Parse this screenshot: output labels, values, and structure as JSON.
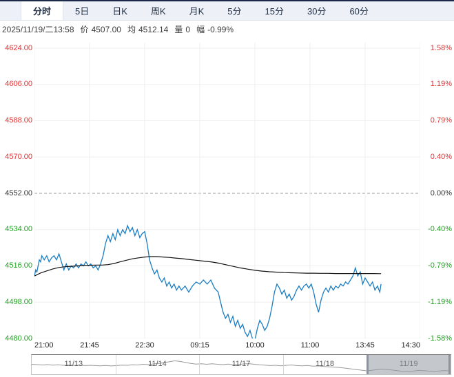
{
  "tabbar": {
    "tabs": [
      {
        "label": "分时",
        "selected": true
      },
      {
        "label": "5日",
        "selected": false
      },
      {
        "label": "日K",
        "selected": false
      },
      {
        "label": "周K",
        "selected": false
      },
      {
        "label": "月K",
        "selected": false
      },
      {
        "label": "5分",
        "selected": false
      },
      {
        "label": "15分",
        "selected": false
      },
      {
        "label": "30分",
        "selected": false
      },
      {
        "label": "60分",
        "selected": false
      }
    ]
  },
  "status": {
    "datetime": "2025/11/19/二13:58",
    "fields": [
      {
        "label": "价",
        "value": "4507.00"
      },
      {
        "label": "均",
        "value": "4512.14"
      },
      {
        "label": "量",
        "value": "0"
      },
      {
        "label": "幅",
        "value": "-0.99%"
      }
    ]
  },
  "colors": {
    "up_red": "#e03333",
    "down_green": "#1fa31f",
    "neutral": "#333333",
    "price_line": "#1a7dc2",
    "avg_line": "#111111",
    "grid": "#efefef",
    "mid_dash": "#999999",
    "sparkline": "#9a9a9a",
    "tick_text": "#222222"
  },
  "chart_data": {
    "type": "line",
    "title": "intraday time-sharing chart",
    "x_axis": {
      "domain_minutes": [
        0,
        315
      ],
      "ticks": [
        {
          "label": "21:00",
          "min": 0
        },
        {
          "label": "21:45",
          "min": 45
        },
        {
          "label": "22:30",
          "min": 90
        },
        {
          "label": "09:15",
          "min": 135
        },
        {
          "label": "10:00",
          "min": 180
        },
        {
          "label": "11:00",
          "min": 225
        },
        {
          "label": "13:45",
          "min": 270
        },
        {
          "label": "14:30",
          "min": 315
        }
      ]
    },
    "y_axis": {
      "domain": [
        4480,
        4624
      ],
      "prev_close": 4552,
      "levels": [
        {
          "price": "4624.00",
          "pct": "1.58%",
          "tone": "up"
        },
        {
          "price": "4606.00",
          "pct": "1.19%",
          "tone": "up"
        },
        {
          "price": "4588.00",
          "pct": "0.79%",
          "tone": "up"
        },
        {
          "price": "4570.00",
          "pct": "0.40%",
          "tone": "up"
        },
        {
          "price": "4552.00",
          "pct": "0.00%",
          "tone": "flat"
        },
        {
          "price": "4534.00",
          "pct": "-0.40%",
          "tone": "down"
        },
        {
          "price": "4516.00",
          "pct": "-0.79%",
          "tone": "down"
        },
        {
          "price": "4498.00",
          "pct": "-1.19%",
          "tone": "down"
        },
        {
          "price": "4480.00",
          "pct": "-1.58%",
          "tone": "down"
        }
      ]
    },
    "series": [
      {
        "name": "price",
        "color_key": "price_line",
        "width": 1.3,
        "points": [
          [
            0,
            4511
          ],
          [
            1,
            4514
          ],
          [
            2,
            4513
          ],
          [
            3,
            4516
          ],
          [
            4,
            4519
          ],
          [
            5,
            4518
          ],
          [
            6,
            4521
          ],
          [
            8,
            4519
          ],
          [
            10,
            4521
          ],
          [
            12,
            4518
          ],
          [
            14,
            4520
          ],
          [
            16,
            4521
          ],
          [
            18,
            4519
          ],
          [
            20,
            4522
          ],
          [
            22,
            4518
          ],
          [
            24,
            4514
          ],
          [
            26,
            4517
          ],
          [
            28,
            4514
          ],
          [
            30,
            4516
          ],
          [
            32,
            4515
          ],
          [
            34,
            4517
          ],
          [
            36,
            4515
          ],
          [
            38,
            4517
          ],
          [
            40,
            4516
          ],
          [
            42,
            4518
          ],
          [
            44,
            4516
          ],
          [
            46,
            4517
          ],
          [
            48,
            4515
          ],
          [
            50,
            4516
          ],
          [
            52,
            4514
          ],
          [
            54,
            4517
          ],
          [
            56,
            4521
          ],
          [
            58,
            4527
          ],
          [
            60,
            4531
          ],
          [
            62,
            4528
          ],
          [
            64,
            4532
          ],
          [
            66,
            4529
          ],
          [
            68,
            4534
          ],
          [
            70,
            4531
          ],
          [
            72,
            4534
          ],
          [
            74,
            4532
          ],
          [
            76,
            4536
          ],
          [
            78,
            4533
          ],
          [
            80,
            4535
          ],
          [
            82,
            4531
          ],
          [
            84,
            4534
          ],
          [
            86,
            4530
          ],
          [
            88,
            4532
          ],
          [
            90,
            4533
          ],
          [
            92,
            4527
          ],
          [
            94,
            4519
          ],
          [
            96,
            4515
          ],
          [
            98,
            4512
          ],
          [
            100,
            4514
          ],
          [
            102,
            4510
          ],
          [
            104,
            4508
          ],
          [
            106,
            4510
          ],
          [
            108,
            4506
          ],
          [
            110,
            4508
          ],
          [
            112,
            4505
          ],
          [
            114,
            4507
          ],
          [
            116,
            4504
          ],
          [
            118,
            4506
          ],
          [
            120,
            4504
          ],
          [
            123,
            4506
          ],
          [
            126,
            4503
          ],
          [
            129,
            4506
          ],
          [
            132,
            4508
          ],
          [
            135,
            4507
          ],
          [
            138,
            4509
          ],
          [
            141,
            4507
          ],
          [
            144,
            4509
          ],
          [
            147,
            4505
          ],
          [
            150,
            4503
          ],
          [
            152,
            4498
          ],
          [
            154,
            4493
          ],
          [
            156,
            4490
          ],
          [
            158,
            4492
          ],
          [
            160,
            4488
          ],
          [
            162,
            4491
          ],
          [
            164,
            4486
          ],
          [
            166,
            4489
          ],
          [
            168,
            4485
          ],
          [
            170,
            4487
          ],
          [
            172,
            4483
          ],
          [
            174,
            4481
          ],
          [
            176,
            4484
          ],
          [
            178,
            4480
          ],
          [
            180,
            4479
          ],
          [
            182,
            4485
          ],
          [
            184,
            4489
          ],
          [
            186,
            4487
          ],
          [
            188,
            4484
          ],
          [
            190,
            4486
          ],
          [
            192,
            4490
          ],
          [
            194,
            4496
          ],
          [
            196,
            4503
          ],
          [
            198,
            4507
          ],
          [
            200,
            4505
          ],
          [
            202,
            4502
          ],
          [
            204,
            4504
          ],
          [
            206,
            4500
          ],
          [
            208,
            4502
          ],
          [
            210,
            4499
          ],
          [
            212,
            4501
          ],
          [
            214,
            4504
          ],
          [
            216,
            4506
          ],
          [
            218,
            4504
          ],
          [
            220,
            4506
          ],
          [
            222,
            4507
          ],
          [
            224,
            4505
          ],
          [
            226,
            4507
          ],
          [
            228,
            4503
          ],
          [
            230,
            4497
          ],
          [
            232,
            4493
          ],
          [
            234,
            4499
          ],
          [
            236,
            4503
          ],
          [
            238,
            4505
          ],
          [
            240,
            4503
          ],
          [
            242,
            4506
          ],
          [
            244,
            4504
          ],
          [
            246,
            4506
          ],
          [
            248,
            4505
          ],
          [
            250,
            4507
          ],
          [
            252,
            4506
          ],
          [
            254,
            4508
          ],
          [
            256,
            4507
          ],
          [
            258,
            4509
          ],
          [
            260,
            4511
          ],
          [
            262,
            4515
          ],
          [
            264,
            4511
          ],
          [
            266,
            4513
          ],
          [
            268,
            4507
          ],
          [
            270,
            4510
          ],
          [
            272,
            4508
          ],
          [
            274,
            4506
          ],
          [
            276,
            4508
          ],
          [
            278,
            4504
          ],
          [
            280,
            4506
          ],
          [
            282,
            4503
          ],
          [
            283,
            4507
          ]
        ]
      },
      {
        "name": "average",
        "color_key": "avg_line",
        "width": 1.2,
        "points": [
          [
            0,
            4511
          ],
          [
            5,
            4512.5
          ],
          [
            10,
            4513.5
          ],
          [
            15,
            4514.5
          ],
          [
            20,
            4515.2
          ],
          [
            25,
            4515.6
          ],
          [
            30,
            4515.8
          ],
          [
            35,
            4516
          ],
          [
            40,
            4516.2
          ],
          [
            45,
            4516.3
          ],
          [
            50,
            4516.4
          ],
          [
            55,
            4516.4
          ],
          [
            60,
            4516.6
          ],
          [
            65,
            4517.2
          ],
          [
            70,
            4518
          ],
          [
            75,
            4518.8
          ],
          [
            80,
            4519.5
          ],
          [
            85,
            4520
          ],
          [
            90,
            4520.4
          ],
          [
            95,
            4520.6
          ],
          [
            100,
            4520.6
          ],
          [
            105,
            4520.4
          ],
          [
            110,
            4520.2
          ],
          [
            115,
            4519.9
          ],
          [
            120,
            4519.6
          ],
          [
            126,
            4519.2
          ],
          [
            132,
            4518.8
          ],
          [
            138,
            4518.4
          ],
          [
            144,
            4518
          ],
          [
            150,
            4517.4
          ],
          [
            156,
            4516.6
          ],
          [
            162,
            4515.8
          ],
          [
            168,
            4515
          ],
          [
            174,
            4514.4
          ],
          [
            180,
            4513.8
          ],
          [
            186,
            4513.4
          ],
          [
            192,
            4513.1
          ],
          [
            198,
            4512.9
          ],
          [
            204,
            4512.7
          ],
          [
            210,
            4512.6
          ],
          [
            216,
            4512.5
          ],
          [
            222,
            4512.4
          ],
          [
            228,
            4512.4
          ],
          [
            234,
            4512.3
          ],
          [
            240,
            4512.3
          ],
          [
            246,
            4512.2
          ],
          [
            252,
            4512.2
          ],
          [
            258,
            4512.2
          ],
          [
            264,
            4512.2
          ],
          [
            270,
            4512.2
          ],
          [
            276,
            4512.2
          ],
          [
            283,
            4512.14
          ]
        ]
      }
    ],
    "navigator": {
      "days": [
        {
          "label": "11/13",
          "selected": false
        },
        {
          "label": "11/14",
          "selected": false
        },
        {
          "label": "11/17",
          "selected": false
        },
        {
          "label": "11/18",
          "selected": false
        },
        {
          "label": "11/19",
          "selected": true
        }
      ],
      "sparkline": [
        52,
        50,
        48,
        50,
        47,
        49,
        46,
        48,
        45,
        47,
        44,
        46,
        44,
        43,
        45,
        42,
        44,
        47,
        46,
        49,
        48,
        52,
        50,
        54,
        57,
        62,
        68,
        73,
        69,
        63,
        57,
        53,
        55,
        52,
        55,
        52,
        50,
        53,
        49,
        51,
        54,
        56,
        52,
        49,
        47,
        44,
        46,
        43,
        46,
        48,
        44,
        43,
        45,
        41,
        42,
        39,
        37,
        35,
        33,
        29,
        25,
        21,
        17,
        13,
        15,
        19,
        23,
        21,
        17,
        13,
        9,
        7,
        11,
        15,
        13,
        11,
        9,
        12,
        14,
        11
      ]
    }
  }
}
